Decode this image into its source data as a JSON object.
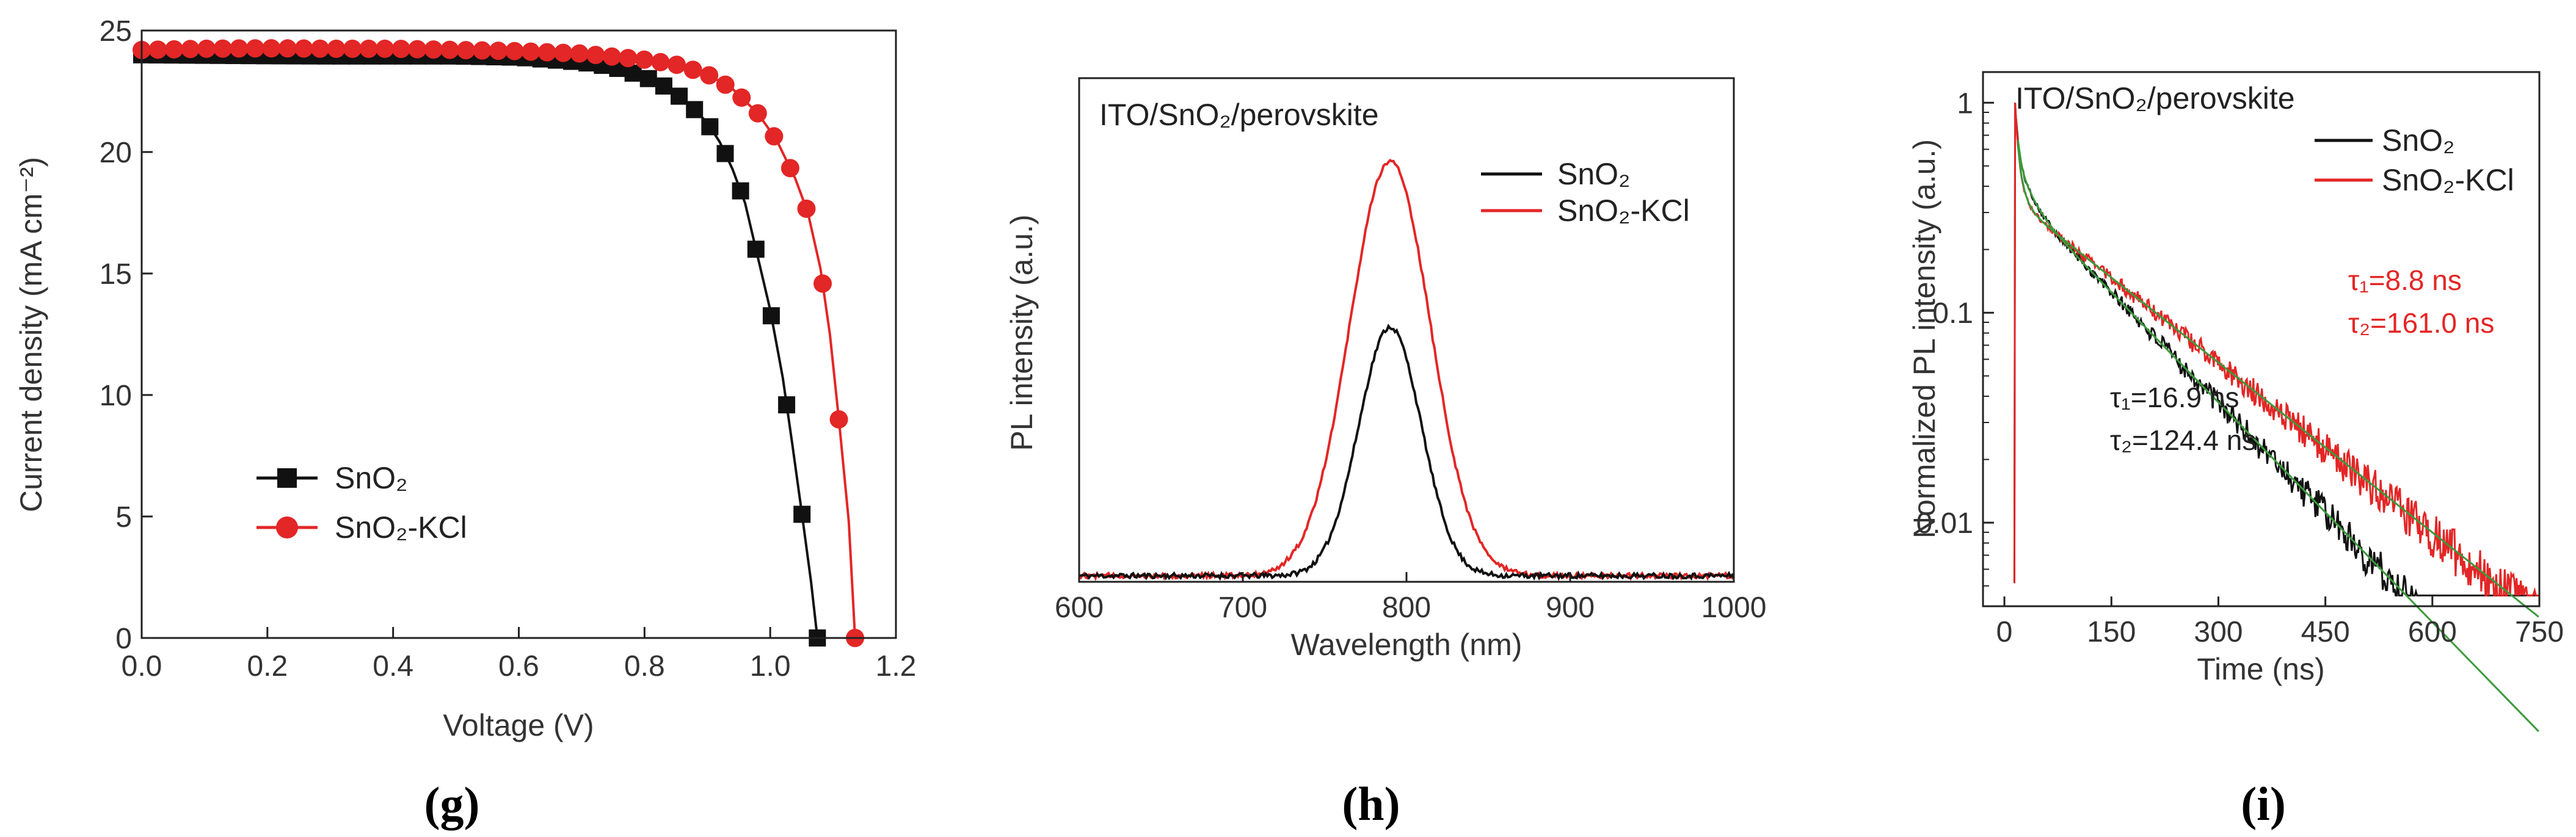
{
  "colors": {
    "black": "#111111",
    "red": "#e32626",
    "fit": "#3a9a3a",
    "axis": "#222222"
  },
  "chart_data": [
    {
      "id": "g",
      "panel_label": "(g)",
      "type": "line",
      "title": "",
      "xlabel": "Voltage (V)",
      "ylabel": "Current density (mA cm⁻²)",
      "xlim": [
        0,
        1.2
      ],
      "ylim": [
        0,
        25
      ],
      "xticks": [
        0.0,
        0.2,
        0.4,
        0.6,
        0.8,
        1.0,
        1.2
      ],
      "xtick_labels": [
        "0.0",
        "0.2",
        "0.4",
        "0.6",
        "0.8",
        "1.0",
        "1.2"
      ],
      "yticks": [
        0,
        5,
        10,
        15,
        20,
        25
      ],
      "ytick_labels": [
        "0",
        "5",
        "10",
        "15",
        "20",
        "25"
      ],
      "legend_position": "lower-left",
      "series": [
        {
          "name": "SnO₂",
          "marker": "square",
          "color": "#111111",
          "x": [
            0.0,
            0.1,
            0.2,
            0.3,
            0.4,
            0.5,
            0.6,
            0.7,
            0.75,
            0.8,
            0.84,
            0.87,
            0.9,
            0.92,
            0.94,
            0.96,
            0.98,
            1.0,
            1.02,
            1.035,
            1.05,
            1.065,
            1.075
          ],
          "y": [
            24.0,
            23.98,
            23.96,
            23.95,
            23.95,
            23.95,
            23.9,
            23.7,
            23.5,
            23.1,
            22.6,
            22.0,
            21.2,
            20.4,
            19.3,
            17.9,
            15.7,
            13.5,
            10.7,
            8.0,
            5.2,
            2.3,
            0.0
          ],
          "marker_every": 2
        },
        {
          "name": "SnO₂-KCl",
          "marker": "circle",
          "color": "#e32626",
          "x": [
            0.0,
            0.1,
            0.2,
            0.3,
            0.4,
            0.5,
            0.6,
            0.7,
            0.8,
            0.85,
            0.9,
            0.94,
            0.98,
            1.01,
            1.04,
            1.06,
            1.08,
            1.095,
            1.11,
            1.125,
            1.135
          ],
          "y": [
            24.2,
            24.25,
            24.27,
            24.25,
            24.25,
            24.2,
            24.15,
            24.05,
            23.8,
            23.6,
            23.2,
            22.6,
            21.6,
            20.5,
            18.9,
            17.5,
            15.2,
            12.5,
            8.8,
            4.8,
            0.0
          ],
          "marker_every": 2
        }
      ]
    },
    {
      "id": "h",
      "panel_label": "(h)",
      "type": "line",
      "title": "",
      "xlabel": "Wavelength (nm)",
      "ylabel": "PL intensity (a.u.)",
      "xlim": [
        600,
        1000
      ],
      "ylim": [
        0,
        1.2
      ],
      "xticks": [
        600,
        700,
        800,
        900,
        1000
      ],
      "xtick_labels": [
        "600",
        "700",
        "800",
        "900",
        "1000"
      ],
      "yticks": [],
      "ytick_labels": [],
      "annotation": "ITO/SnO₂/perovskite",
      "legend_position": "upper-right",
      "series": [
        {
          "name": "SnO₂",
          "color": "#111111",
          "peak_nm": 790,
          "fwhm_nm": 45,
          "amplitude": 0.6
        },
        {
          "name": "SnO₂-KCl",
          "color": "#e32626",
          "peak_nm": 790,
          "fwhm_nm": 58,
          "amplitude": 1.0
        }
      ]
    },
    {
      "id": "i",
      "panel_label": "(i)",
      "type": "line",
      "title": "",
      "xlabel": "Time (ns)",
      "ylabel": "Normalized PL intensity (a.u.)",
      "yscale": "log",
      "xlim": [
        -30,
        750
      ],
      "ylim": [
        0.004,
        1.4
      ],
      "xticks": [
        0,
        150,
        300,
        450,
        600,
        750
      ],
      "xtick_labels": [
        "0",
        "150",
        "300",
        "450",
        "600",
        "750"
      ],
      "yticks": [
        1,
        0.1,
        0.01
      ],
      "ytick_labels": [
        "1",
        "0.1",
        "0.01"
      ],
      "annotation": "ITO/SnO₂/perovskite",
      "legend_position": "upper-right",
      "series": [
        {
          "name": "SnO₂",
          "color": "#111111",
          "t0": 15,
          "a1": 0.22,
          "tau1": 16.9,
          "a2": 0.37,
          "tau2": 124.4,
          "fit_text": [
            "τ₁=16.9 ns",
            "τ₂=124.4 ns"
          ]
        },
        {
          "name": "SnO₂-KCl",
          "color": "#e32626",
          "t0": 15,
          "a1": 0.26,
          "tau1": 8.8,
          "a2": 0.34,
          "tau2": 161.0,
          "fit_text": [
            "τ₁=8.8 ns",
            "τ₂=161.0 ns"
          ]
        }
      ]
    }
  ]
}
